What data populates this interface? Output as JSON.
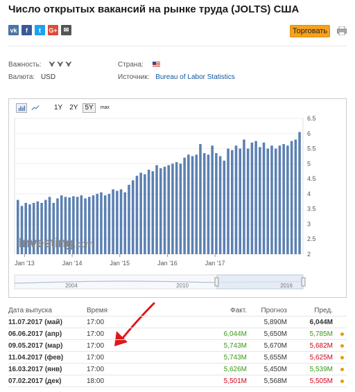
{
  "title": "Число открытых вакансий на рынке труда (JOLTS) США",
  "share": {
    "vk": "vk",
    "fb": "f",
    "tw": "t",
    "gp": "G+",
    "em": "✉"
  },
  "trade_button": "Торговать",
  "info": {
    "importance_label": "Важность:",
    "currency_label": "Валюта:",
    "currency": "USD",
    "country_label": "Страна:",
    "source_label": "Источник:",
    "source": "Bureau of Labor Statistics"
  },
  "toolbar": {
    "r1": "1Y",
    "r2": "2Y",
    "r5": "5Y",
    "rmax": "max"
  },
  "watermark": {
    "brand": "Investing",
    "suffix": ".com"
  },
  "chart_data": {
    "type": "bar",
    "y_ticks": [
      "2",
      "2.5",
      "3",
      "3.5",
      "4",
      "4.5",
      "5",
      "5.5",
      "6",
      "6.5"
    ],
    "ylim": [
      2,
      6.5
    ],
    "x_ticks": [
      "Jan '13",
      "Jan '14",
      "Jan '15",
      "Jan '16",
      "Jan '17"
    ],
    "values": [
      3.8,
      3.6,
      3.7,
      3.65,
      3.7,
      3.75,
      3.7,
      3.8,
      3.9,
      3.7,
      3.85,
      3.95,
      3.9,
      3.88,
      3.92,
      3.9,
      3.95,
      3.85,
      3.9,
      3.95,
      4.0,
      4.05,
      3.95,
      4.0,
      4.15,
      4.1,
      4.15,
      4.05,
      4.3,
      4.45,
      4.6,
      4.7,
      4.65,
      4.8,
      4.75,
      4.95,
      4.85,
      4.9,
      4.95,
      5.0,
      5.05,
      5.0,
      5.2,
      5.3,
      5.25,
      5.3,
      5.65,
      5.35,
      5.3,
      5.6,
      5.35,
      5.25,
      5.1,
      5.5,
      5.45,
      5.6,
      5.5,
      5.8,
      5.5,
      5.7,
      5.75,
      5.55,
      5.7,
      5.5,
      5.6,
      5.5,
      5.6,
      5.65,
      5.6,
      5.75,
      5.8,
      6.05
    ],
    "navigator_labels": [
      "2004",
      "2010",
      "2016"
    ]
  },
  "table": {
    "headers": {
      "date": "Дата выпуска",
      "time": "Время",
      "actual": "Факт.",
      "forecast": "Прогноз",
      "previous": "Пред."
    },
    "rows": [
      {
        "date": "11.07.2017 (май)",
        "time": "17:00",
        "actual": "",
        "forecast": "5,890M",
        "previous": "6,044M",
        "act_color": "",
        "prev_color": "bold",
        "dot": false
      },
      {
        "date": "06.06.2017 (апр)",
        "time": "17:00",
        "actual": "6,044M",
        "forecast": "5,650M",
        "previous": "5,785M",
        "act_color": "green",
        "prev_color": "green",
        "dot": true
      },
      {
        "date": "09.05.2017 (мар)",
        "time": "17:00",
        "actual": "5,743M",
        "forecast": "5,670M",
        "previous": "5,682M",
        "act_color": "green",
        "prev_color": "red",
        "dot": true
      },
      {
        "date": "11.04.2017 (фев)",
        "time": "17:00",
        "actual": "5,743M",
        "forecast": "5,655M",
        "previous": "5,625M",
        "act_color": "green",
        "prev_color": "red",
        "dot": true
      },
      {
        "date": "16.03.2017 (янв)",
        "time": "17:00",
        "actual": "5,626M",
        "forecast": "5,450M",
        "previous": "5,539M",
        "act_color": "green",
        "prev_color": "green",
        "dot": true
      },
      {
        "date": "07.02.2017 (дек)",
        "time": "18:00",
        "actual": "5,501M",
        "forecast": "5,568M",
        "previous": "5,505M",
        "act_color": "red",
        "prev_color": "red",
        "dot": true
      }
    ]
  },
  "colors": {
    "bar": "#5b80b2",
    "accent": "#f7a21b",
    "arrow": "#e0161b"
  }
}
